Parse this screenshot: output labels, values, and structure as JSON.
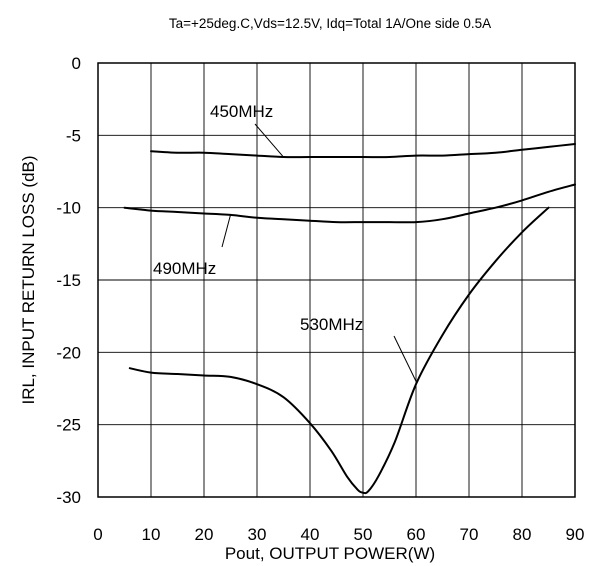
{
  "chart_data": {
    "type": "line",
    "title": "Ta=+25deg.C,Vds=12.5V, Idq=Total 1A/One side 0.5A",
    "xlabel": "Pout, OUTPUT POWER(W)",
    "ylabel": "IRL, INPUT RETURN LOSS (dB)",
    "xlim": [
      0,
      90
    ],
    "ylim": [
      -30,
      0
    ],
    "xticks": [
      0,
      10,
      20,
      30,
      40,
      50,
      60,
      70,
      80,
      90
    ],
    "yticks": [
      0,
      -5,
      -10,
      -15,
      -20,
      -25,
      -30
    ],
    "grid": true,
    "series": [
      {
        "name": "450MHz",
        "x": [
          10,
          15,
          20,
          25,
          30,
          35,
          40,
          45,
          50,
          55,
          60,
          65,
          70,
          75,
          80,
          85,
          90
        ],
        "y": [
          -6.1,
          -6.2,
          -6.2,
          -6.3,
          -6.4,
          -6.5,
          -6.5,
          -6.5,
          -6.5,
          -6.5,
          -6.4,
          -6.4,
          -6.3,
          -6.2,
          -6.0,
          -5.8,
          -5.6
        ]
      },
      {
        "name": "490MHz",
        "x": [
          5,
          10,
          15,
          20,
          25,
          30,
          35,
          40,
          45,
          50,
          55,
          60,
          65,
          70,
          75,
          80,
          85,
          90
        ],
        "y": [
          -10.0,
          -10.2,
          -10.3,
          -10.4,
          -10.5,
          -10.7,
          -10.8,
          -10.9,
          -11.0,
          -11.0,
          -11.0,
          -11.0,
          -10.8,
          -10.4,
          -10.0,
          -9.5,
          -8.9,
          -8.4
        ]
      },
      {
        "name": "530MHz",
        "x": [
          6,
          10,
          15,
          20,
          25,
          30,
          35,
          40,
          44,
          47,
          49,
          50,
          51,
          53,
          56,
          60,
          65,
          70,
          75,
          80,
          85
        ],
        "y": [
          -21.1,
          -21.4,
          -21.5,
          -21.6,
          -21.7,
          -22.2,
          -23.1,
          -24.9,
          -26.8,
          -28.6,
          -29.5,
          -29.7,
          -29.6,
          -28.5,
          -26.2,
          -22.2,
          -18.8,
          -16.0,
          -13.7,
          -11.7,
          -10.0
        ]
      }
    ],
    "annotations": [
      {
        "text": "450MHz",
        "points_to": [
          35,
          -6.5
        ]
      },
      {
        "text": "490MHz",
        "points_to": [
          25,
          -10.5
        ]
      },
      {
        "text": "530MHz",
        "points_to": [
          60,
          -22.0
        ]
      }
    ]
  }
}
